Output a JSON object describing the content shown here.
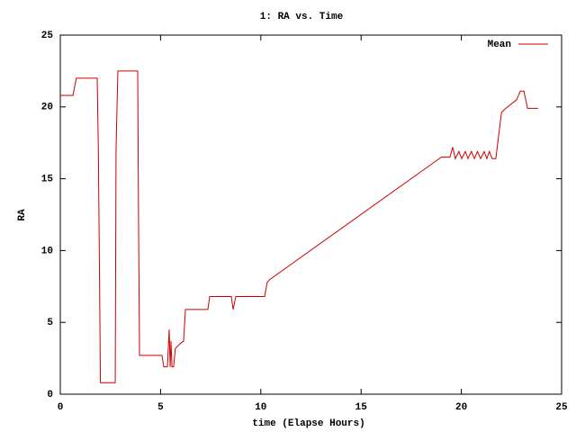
{
  "chart_data": {
    "type": "line",
    "title": "1: RA vs. Time",
    "x_label": "time (Elapse Hours)",
    "y_label": "RA",
    "x": [
      0,
      0.63,
      0.8,
      1.84,
      1.9,
      1.97,
      2.0,
      2.74,
      2.78,
      2.87,
      3.86,
      3.9,
      3.95,
      5.07,
      5.16,
      5.34,
      5.43,
      5.48,
      5.52,
      5.57,
      5.65,
      5.74,
      5.97,
      6.15,
      6.24,
      7.36,
      7.45,
      8.53,
      8.62,
      8.75,
      10.19,
      10.32,
      10.46,
      18.9,
      19.0,
      19.43,
      19.57,
      19.7,
      19.88,
      20.02,
      20.2,
      20.33,
      20.5,
      20.65,
      20.8,
      20.96,
      21.14,
      21.27,
      21.4,
      21.54,
      21.72,
      22.0,
      22.13,
      22.76,
      22.94,
      23.12,
      23.3,
      23.83
    ],
    "series": [
      {
        "name": "Mean",
        "color": "#cc0000",
        "values": [
          20.8,
          20.8,
          22,
          22,
          16.8,
          6,
          0.8,
          0.8,
          17,
          22.5,
          22.5,
          12.6,
          2.7,
          2.7,
          1.9,
          1.9,
          4.5,
          1.9,
          3.7,
          1.9,
          1.9,
          3.2,
          3.5,
          3.7,
          5.9,
          5.9,
          6.8,
          6.8,
          5.9,
          6.8,
          6.8,
          7.8,
          8.0,
          16.4,
          16.5,
          16.5,
          17.2,
          16.4,
          16.9,
          16.4,
          16.9,
          16.4,
          16.9,
          16.4,
          16.9,
          16.4,
          16.9,
          16.4,
          16.9,
          16.4,
          16.4,
          19.6,
          19.8,
          20.5,
          21.1,
          21.1,
          19.9,
          19.9
        ]
      }
    ],
    "xlim": [
      0,
      25
    ],
    "xticks": [
      0,
      5,
      10,
      15,
      20,
      25
    ],
    "ylim": [
      0,
      25
    ],
    "yticks": [
      0,
      5,
      10,
      15,
      20,
      25
    ],
    "legend": "top right",
    "grid": false
  }
}
